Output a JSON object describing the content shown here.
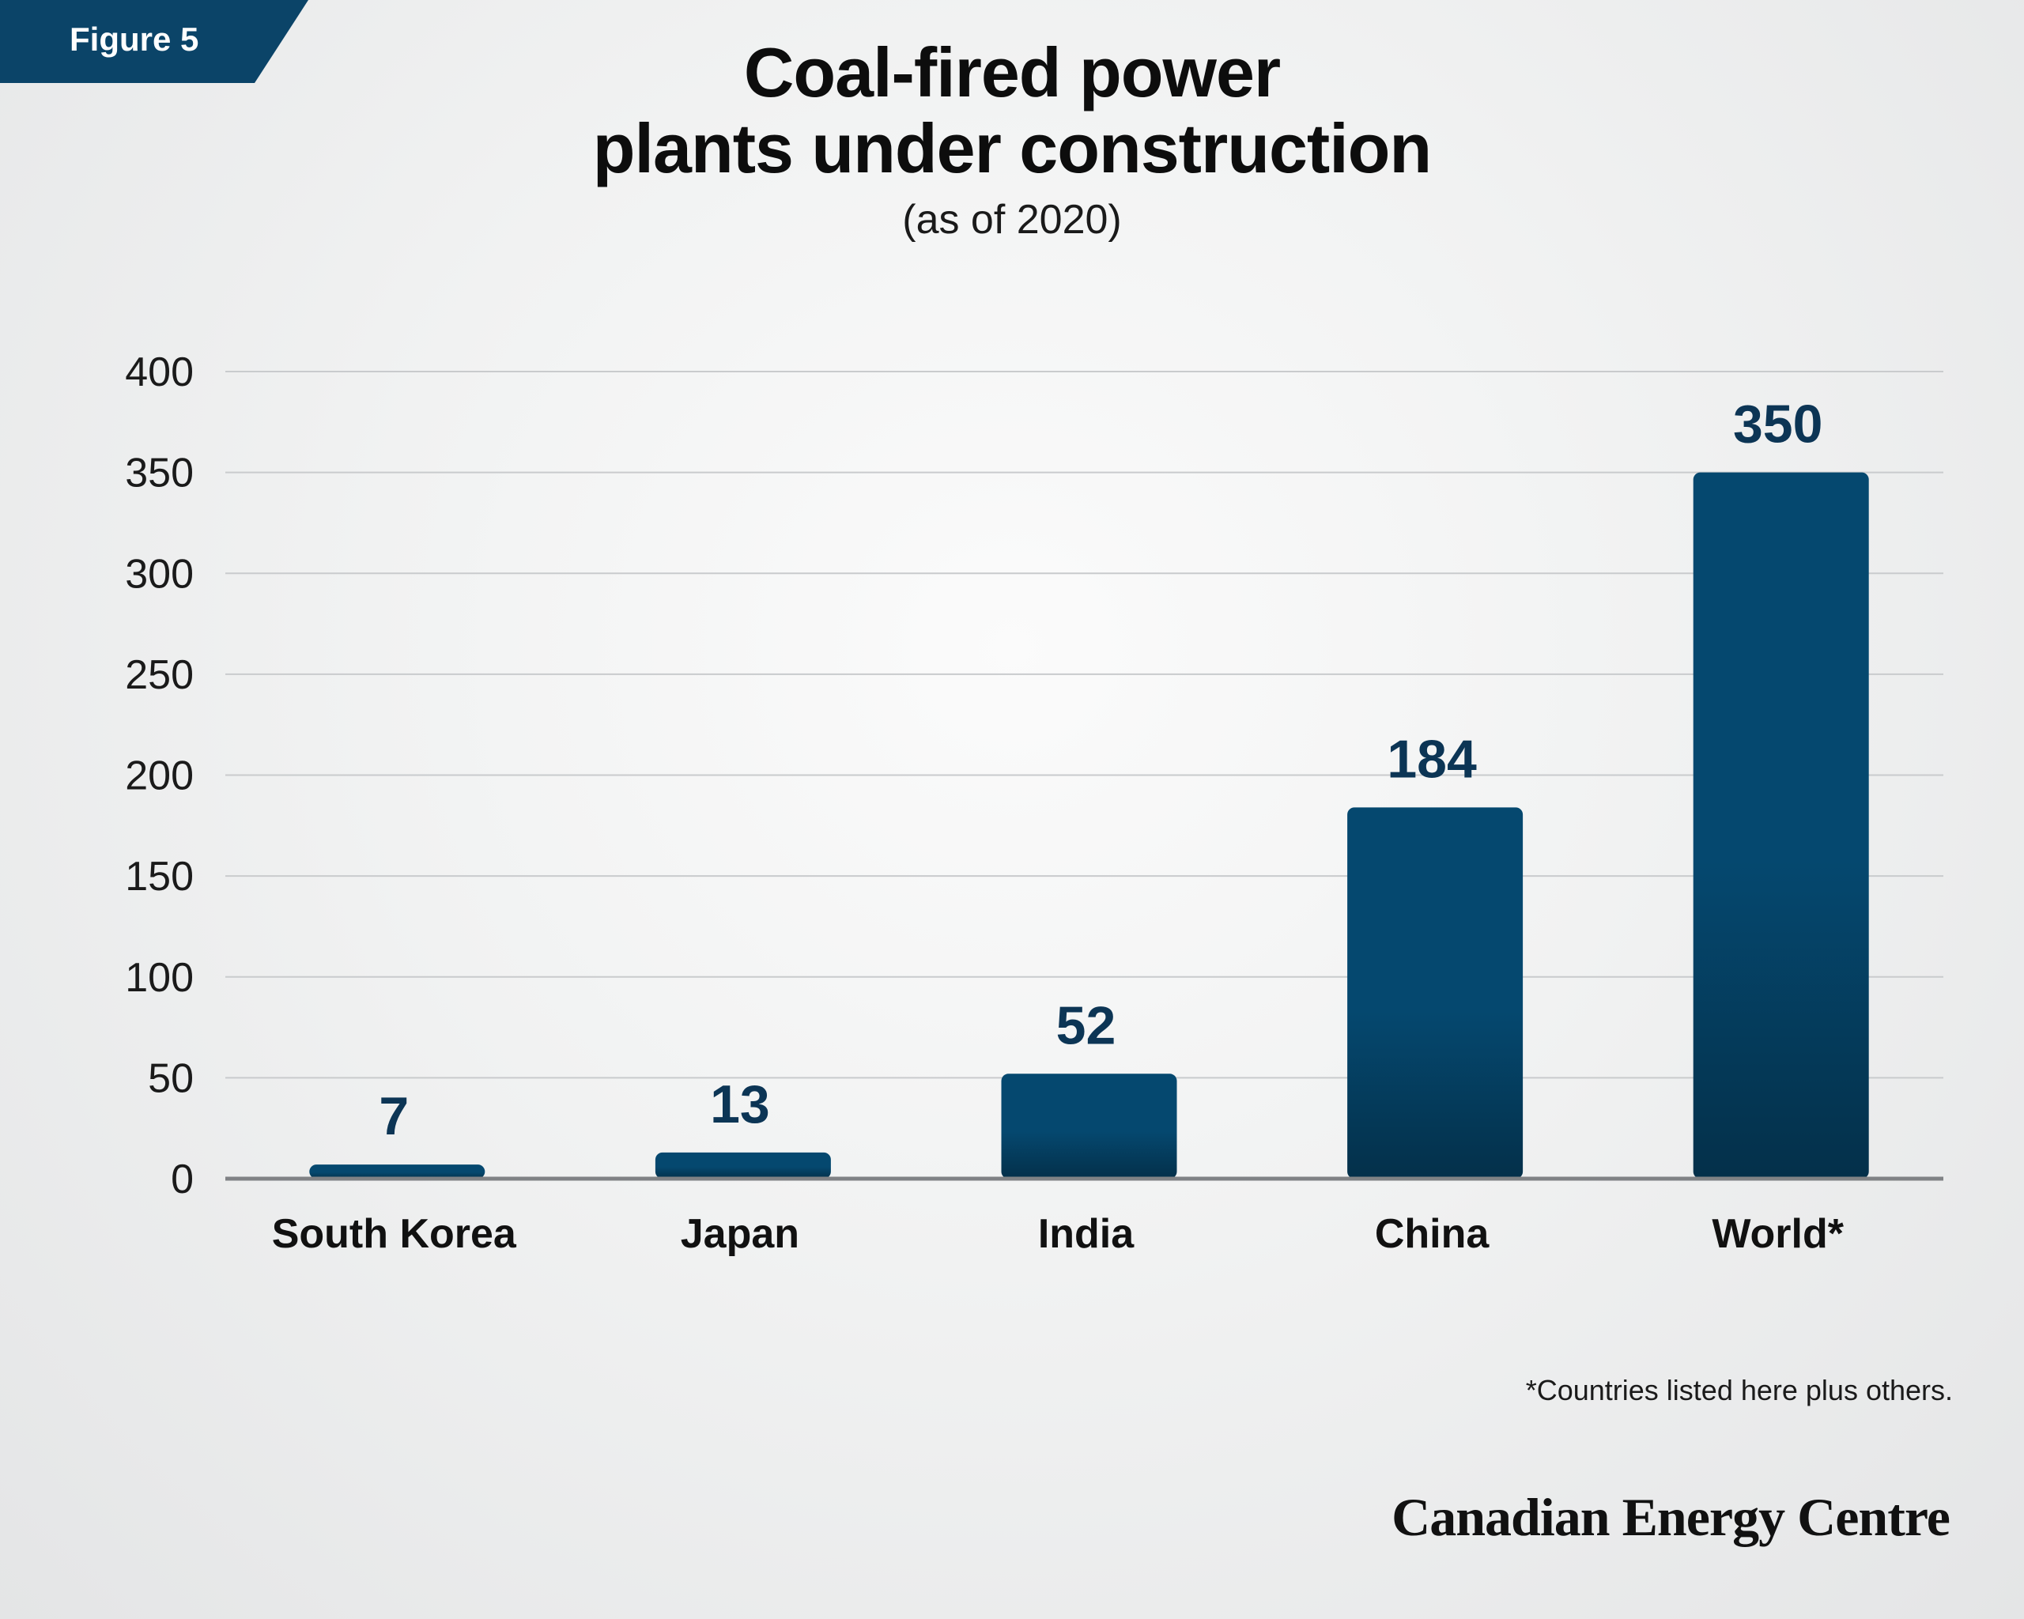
{
  "figure_label": "Figure 5",
  "title_line1": "Coal-fired power",
  "title_line2": "plants under construction",
  "subtitle": "(as of 2020)",
  "footnote": "*Countries listed here plus others.",
  "logo": "Canadian Energy Centre",
  "colors": {
    "badge": "#0b4468",
    "bar_top": "#05486f",
    "bar_bottom": "#04304a",
    "value_label": "#0c3555",
    "grid": "#c9cbcd",
    "axis": "#808285"
  },
  "chart_data": {
    "type": "bar",
    "categories": [
      "South Korea",
      "Japan",
      "India",
      "China",
      "World*"
    ],
    "values": [
      7,
      13,
      52,
      184,
      350
    ],
    "data_labels": [
      "7",
      "13",
      "52",
      "184",
      "350"
    ],
    "yticks": [
      0,
      50,
      100,
      150,
      200,
      250,
      300,
      350,
      400
    ],
    "ylim": [
      0,
      400
    ],
    "grid": true,
    "legend": "none"
  }
}
